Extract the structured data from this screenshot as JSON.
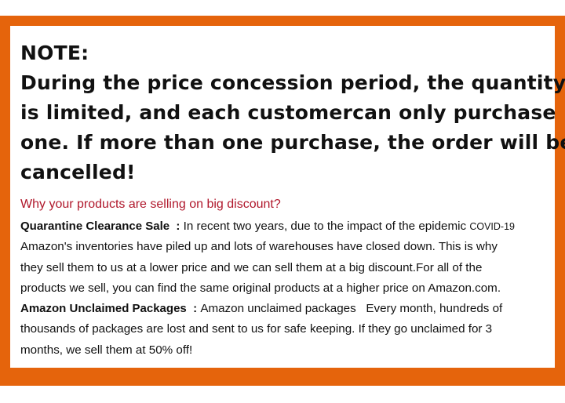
{
  "colors": {
    "frame": "#e5640c",
    "subheading": "#b0182c"
  },
  "note": {
    "title": "NOTE:",
    "lines": [
      "During the price concession period, the quantity",
      "is limited, and each customercan only purchase",
      "one. If more than one purchase, the order will be",
      "cancelled!"
    ]
  },
  "subheading": "Why your products are selling on big discount?",
  "quarantine": {
    "label": "Quarantine Clearance Sale  :",
    "first_line": " In recent two years, due to the impact of the epidemic ",
    "covid": "COVID-19",
    "lines": [
      "Amazon's inventories have piled up and lots of warehouses have closed down. This is why",
      "they sell them to us at a lower price and we can sell them at a big discount.For all of the",
      "products we sell, you can find the same original products at a higher price on Amazon.com."
    ]
  },
  "unclaimed": {
    "label": "Amazon Unclaimed Packages  :",
    "first_line": " Amazon unclaimed packages   Every month, hundreds of",
    "lines": [
      "thousands of packages are lost and sent to us for safe keeping. If they go unclaimed for 3",
      "months, we sell them at 50% off!"
    ]
  }
}
